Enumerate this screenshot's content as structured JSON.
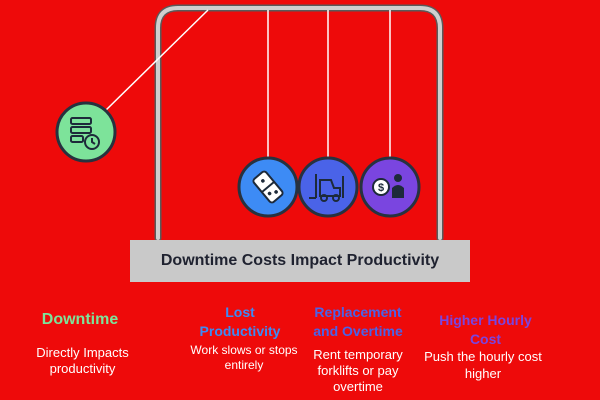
{
  "banner": {
    "title": "Downtime Costs Impact Productivity"
  },
  "items": [
    {
      "title": "Downtime",
      "description": "Directly Impacts productivity",
      "color": "#7de39a",
      "icon": "server-clock-icon"
    },
    {
      "title": "Lost Productivity",
      "description": "Work slows or stops entirely",
      "color": "#3d8bf5",
      "icon": "domino-icon"
    },
    {
      "title": "Replacement and Overtime",
      "description": "Rent temporary forklifts or pay overtime",
      "color": "#4a63e8",
      "icon": "forklift-icon"
    },
    {
      "title": "Higher Hourly Cost",
      "description": "Push the hourly cost higher",
      "color": "#7a45e0",
      "icon": "money-worker-icon"
    }
  ],
  "colors": {
    "background": "#ee0a0a",
    "frame": "#c8c8c8",
    "banner": "#c9c9c9",
    "banner_text": "#1f2230"
  }
}
